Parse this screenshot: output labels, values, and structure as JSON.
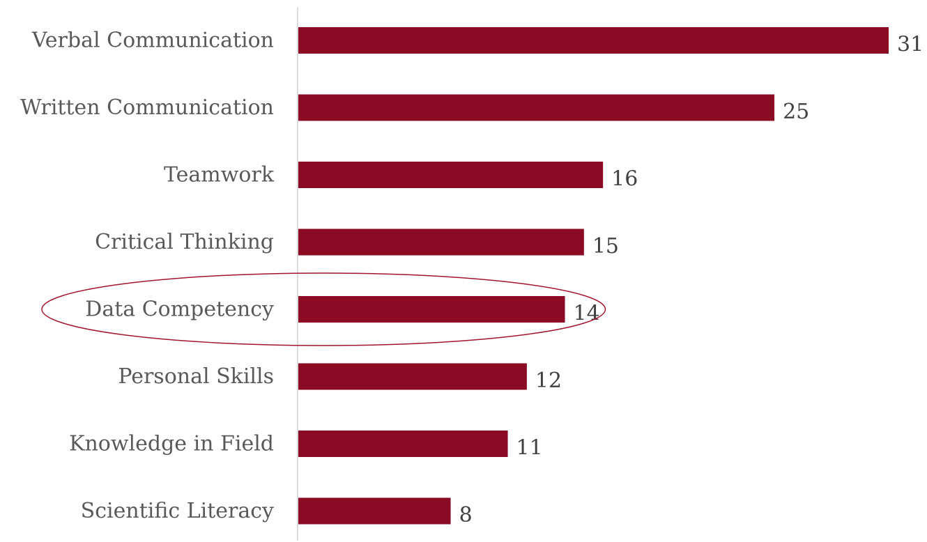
{
  "chart_data": {
    "type": "bar",
    "orientation": "horizontal",
    "categories": [
      "Verbal Communication",
      "Written Communication",
      "Teamwork",
      "Critical Thinking",
      "Data Competency",
      "Personal Skills",
      "Knowledge in Field",
      "Scientific Literacy"
    ],
    "values": [
      31,
      25,
      16,
      15,
      14,
      12,
      11,
      8
    ],
    "data_labels": [
      "31",
      "25",
      "16",
      "15",
      "14",
      "12",
      "11",
      "8"
    ],
    "title": "",
    "xlabel": "",
    "ylabel": "",
    "xlim": [
      0,
      31
    ],
    "grid": false,
    "legend": "none",
    "highlighted_category": "Data Competency",
    "colors": {
      "bar": "#8b0a24",
      "highlight_outline": "#a3142e",
      "axis": "#d0d0d0"
    }
  }
}
